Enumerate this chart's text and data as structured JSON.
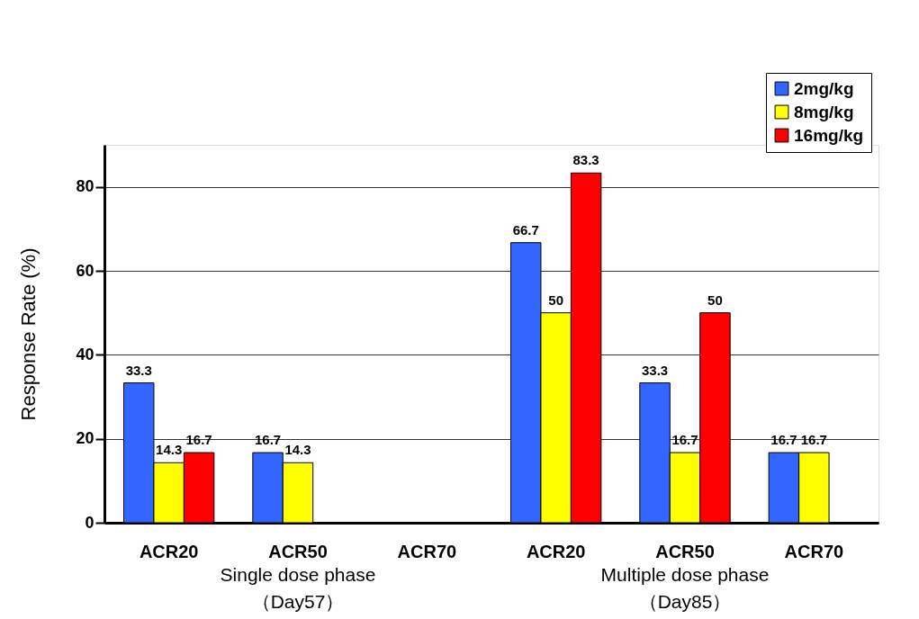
{
  "chart_data": {
    "type": "bar",
    "ylabel": "Response Rate (%)",
    "categories": [
      "ACR20",
      "ACR50",
      "ACR70",
      "ACR20",
      "ACR50",
      "ACR70"
    ],
    "series": [
      {
        "name": "2mg/kg",
        "color": "#3366ff",
        "values": [
          33.3,
          16.7,
          null,
          66.7,
          33.3,
          16.7
        ]
      },
      {
        "name": "8mg/kg",
        "color": "#ffff00",
        "values": [
          14.3,
          14.3,
          null,
          50,
          16.7,
          16.7
        ]
      },
      {
        "name": "16mg/kg",
        "color": "#ff0000",
        "values": [
          16.7,
          null,
          null,
          83.3,
          50,
          null
        ]
      }
    ],
    "annotations": [
      "Single dose phase\n（Day57）",
      "Multiple dose phase\n（Day85）"
    ],
    "ylim": [
      0,
      90
    ],
    "yticks": [
      0,
      20,
      40,
      60,
      80
    ],
    "grid": "y",
    "legend": "top right",
    "data_labels": true
  }
}
